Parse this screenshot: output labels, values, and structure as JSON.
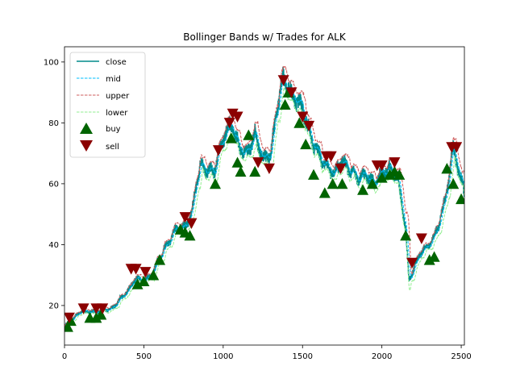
{
  "chart_data": {
    "type": "line",
    "title": "Bollinger Bands w/ Trades for ALK",
    "xlabel": "",
    "ylabel": "",
    "xlim": [
      0,
      2520
    ],
    "ylim": [
      7,
      105
    ],
    "xticks": [
      0,
      500,
      1000,
      1500,
      2000,
      2500
    ],
    "yticks": [
      20,
      40,
      60,
      80,
      100
    ],
    "grid": false,
    "legend_position": "upper-left",
    "x": [
      0,
      100,
      200,
      300,
      400,
      450,
      500,
      550,
      600,
      700,
      760,
      800,
      830,
      860,
      900,
      950,
      1000,
      1050,
      1100,
      1150,
      1200,
      1250,
      1300,
      1350,
      1380,
      1420,
      1450,
      1500,
      1550,
      1600,
      1650,
      1700,
      1750,
      1800,
      1850,
      1900,
      1950,
      2000,
      2050,
      2100,
      2150,
      2170,
      2200,
      2250,
      2300,
      2350,
      2400,
      2450,
      2480,
      2520
    ],
    "close_anchor": [
      13,
      18,
      18,
      19,
      25,
      29,
      28,
      30,
      36,
      45,
      46,
      50,
      60,
      66,
      64,
      65,
      75,
      80,
      72,
      70,
      76,
      68,
      70,
      88,
      95,
      90,
      88,
      85,
      75,
      70,
      66,
      63,
      68,
      64,
      62,
      63,
      60,
      64,
      65,
      62,
      45,
      28,
      32,
      38,
      40,
      45,
      55,
      72,
      65,
      57
    ],
    "series": [
      {
        "name": "close",
        "style": "solid",
        "color": "#008b8b"
      },
      {
        "name": "mid",
        "style": "dashed",
        "color": "#00bfff"
      },
      {
        "name": "upper",
        "style": "dashed",
        "color": "#cd5c5c"
      },
      {
        "name": "lower",
        "style": "dashed",
        "color": "#90ee90"
      }
    ],
    "buy": {
      "name": "buy",
      "color": "#006400",
      "x": [
        20,
        40,
        160,
        200,
        230,
        460,
        500,
        560,
        600,
        730,
        760,
        790,
        950,
        1050,
        1090,
        1110,
        1160,
        1200,
        1390,
        1410,
        1480,
        1520,
        1570,
        1640,
        1690,
        1750,
        1880,
        1940,
        2000,
        2050,
        2080,
        2110,
        2150,
        2300,
        2330,
        2410,
        2450,
        2500
      ],
      "y": [
        13,
        15,
        16,
        16,
        17,
        27,
        28,
        30,
        35,
        45,
        44,
        43,
        60,
        75,
        67,
        64,
        76,
        64,
        86,
        90,
        80,
        73,
        63,
        57,
        60,
        60,
        58,
        60,
        62,
        63,
        64,
        63,
        43,
        35,
        36,
        65,
        60,
        55
      ]
    },
    "sell": {
      "name": "sell",
      "color": "#8b0000",
      "x": [
        30,
        120,
        200,
        240,
        420,
        450,
        510,
        760,
        800,
        970,
        1040,
        1060,
        1090,
        1220,
        1290,
        1380,
        1430,
        1500,
        1540,
        1650,
        1680,
        1740,
        1970,
        2000,
        2080,
        2190,
        2250,
        2440,
        2470
      ],
      "y": [
        16,
        19,
        19,
        19,
        32,
        32,
        31,
        49,
        47,
        71,
        80,
        83,
        82,
        67,
        65,
        94,
        90,
        82,
        79,
        69,
        69,
        65,
        66,
        66,
        67,
        34,
        42,
        72,
        72
      ]
    }
  },
  "legend": {
    "close": "close",
    "mid": "mid",
    "upper": "upper",
    "lower": "lower",
    "buy": "buy",
    "sell": "sell"
  }
}
